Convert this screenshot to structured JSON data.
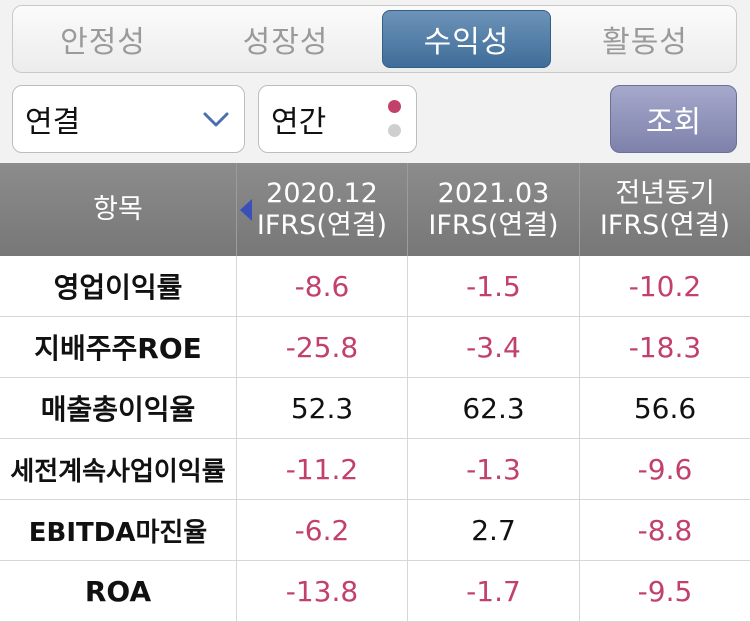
{
  "tabs": [
    {
      "label": "안정성",
      "active": false
    },
    {
      "label": "성장성",
      "active": false
    },
    {
      "label": "수익성",
      "active": true
    },
    {
      "label": "활동성",
      "active": false
    }
  ],
  "filters": {
    "consolidation": {
      "value": "연결"
    },
    "period": {
      "value": "연간"
    },
    "query_button": "조회"
  },
  "table": {
    "header": {
      "item": "항목",
      "columns": [
        {
          "period": "2020.12",
          "basis": "IFRS(연결)"
        },
        {
          "period": "2021.03",
          "basis": "IFRS(연결)"
        },
        {
          "period": "전년동기",
          "basis": "IFRS(연결)"
        }
      ]
    },
    "rows": [
      {
        "name": "영업이익률",
        "values": [
          "-8.6",
          "-1.5",
          "-10.2"
        ]
      },
      {
        "name": "지배주주ROE",
        "values": [
          "-25.8",
          "-3.4",
          "-18.3"
        ]
      },
      {
        "name": "매출총이익율",
        "values": [
          "52.3",
          "62.3",
          "56.6"
        ]
      },
      {
        "name": "세전계속사업이익률",
        "values": [
          "-11.2",
          "-1.3",
          "-9.6"
        ]
      },
      {
        "name": "EBITDA마진율",
        "values": [
          "-6.2",
          "2.7",
          "-8.8"
        ]
      },
      {
        "name": "ROA",
        "values": [
          "-13.8",
          "-1.7",
          "-9.5"
        ]
      }
    ]
  },
  "colors": {
    "negative": "#c2416b",
    "active_tab": "#4f7ba6",
    "query_button": "#8f92bb",
    "page_indicator_active": "#c2416b",
    "page_indicator_inactive": "#cfcfcf"
  }
}
